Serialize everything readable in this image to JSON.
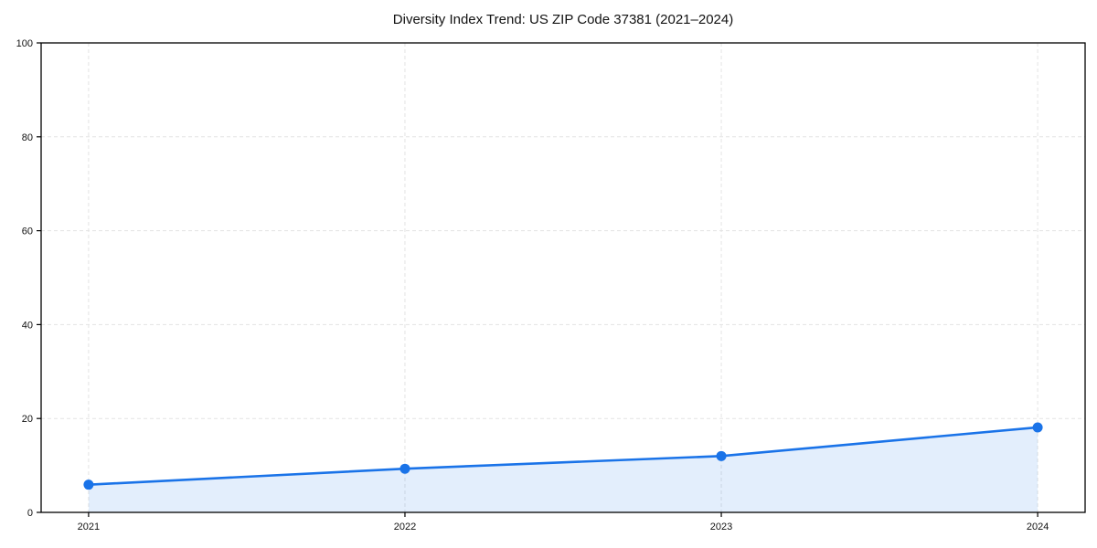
{
  "chart_data": {
    "type": "line",
    "title": "Diversity Index Trend: US ZIP Code 37381 (2021–2024)",
    "x": [
      2021,
      2022,
      2023,
      2024
    ],
    "xtick_labels": [
      "2021",
      "2022",
      "2023",
      "2024"
    ],
    "series": [
      {
        "name": "Diversity Index",
        "values": [
          5.9,
          9.3,
          12.0,
          18.1
        ]
      }
    ],
    "xlabel": "",
    "ylabel": "",
    "ylim": [
      0,
      100
    ],
    "yticks": [
      0,
      20,
      40,
      60,
      80,
      100
    ],
    "grid": true,
    "grid_style": "dashed",
    "legend": false,
    "area_fill": true,
    "marker": "circle"
  },
  "colors": {
    "line": "#1a73e8",
    "fill_opacity": 0.12,
    "grid": "#e3e3e3",
    "axis": "#000000",
    "tick_label": "#111111"
  }
}
